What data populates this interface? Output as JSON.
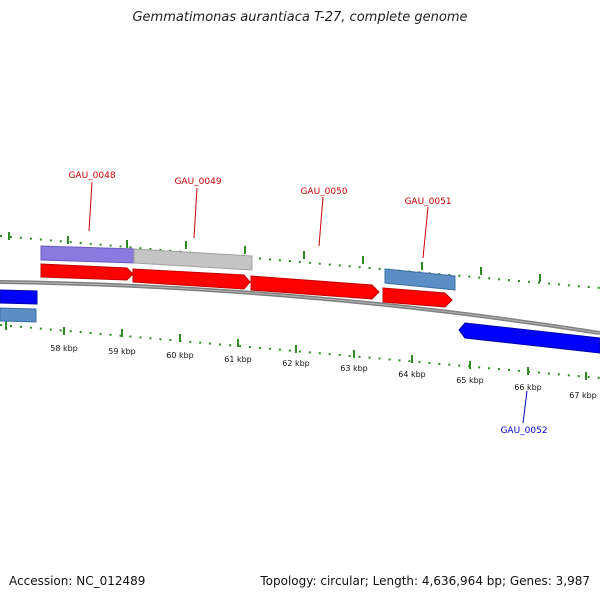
{
  "title": "Gemmatimonas aurantiaca T-27, complete genome",
  "footer": {
    "accession": "Accession: NC_012489",
    "summary": "Topology: circular; Length: 4,636,964 bp; Genes: 3,987"
  },
  "colors": {
    "background": "#ffffff",
    "backbone": "#808080",
    "tick": "#2e8b22",
    "forward_gene": "#ff0000",
    "reverse_gene": "#0000ff",
    "steelblue_feature": "#5b8ec4",
    "purple_feature": "#8a7ae0",
    "grey_feature": "#c0c0c0",
    "forward_label": "#cc0000",
    "reverse_label": "#0000cc"
  },
  "scale_labels": [
    "58 kbp",
    "59 kbp",
    "60 kbp",
    "61 kbp",
    "62 kbp",
    "63 kbp",
    "64 kbp",
    "65 kbp",
    "66 kbp",
    "67 kbp"
  ],
  "gene_labels": {
    "gau_0048": "GAU_0048",
    "gau_0049": "GAU_0049",
    "gau_0050": "GAU_0050",
    "gau_0051": "GAU_0051",
    "gau_0052": "GAU_0052"
  }
}
